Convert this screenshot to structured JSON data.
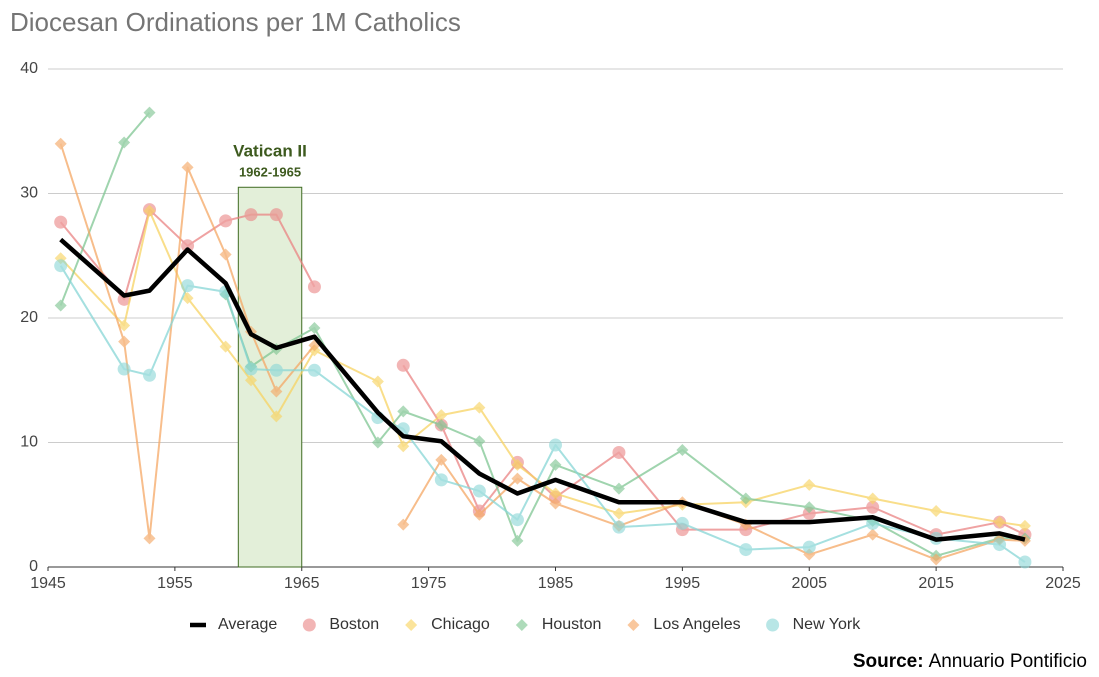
{
  "chart_data": {
    "type": "line",
    "title": "Diocesan Ordinations per 1M Catholics",
    "x": [
      1946,
      1951,
      1953,
      1956,
      1959,
      1961,
      1963,
      1966,
      1971,
      1973,
      1976,
      1979,
      1982,
      1985,
      1990,
      1995,
      2000,
      2005,
      2010,
      2015,
      2020,
      2022
    ],
    "series": [
      {
        "name": "Average",
        "color": "#000000",
        "marker": "none",
        "values": [
          26.3,
          21.8,
          22.2,
          25.5,
          22.8,
          18.7,
          17.6,
          18.5,
          12.4,
          10.5,
          10.1,
          7.5,
          5.9,
          7.0,
          5.2,
          5.2,
          3.6,
          3.6,
          4.0,
          2.2,
          2.7,
          2.2
        ]
      },
      {
        "name": "Boston",
        "color": "#ea8383",
        "marker": "circle",
        "values": [
          27.7,
          21.5,
          28.7,
          25.8,
          27.8,
          28.3,
          28.3,
          22.5,
          null,
          16.2,
          11.4,
          4.5,
          8.4,
          5.6,
          9.2,
          3.0,
          3.0,
          4.3,
          4.8,
          2.6,
          3.6,
          2.6
        ]
      },
      {
        "name": "Chicago",
        "color": "#f8d463",
        "marker": "diamond",
        "values": [
          24.8,
          19.4,
          28.6,
          21.6,
          17.7,
          15.0,
          12.1,
          17.4,
          14.9,
          9.7,
          12.2,
          12.8,
          8.2,
          5.9,
          4.3,
          5.0,
          5.2,
          6.6,
          5.5,
          4.5,
          3.6,
          3.3
        ]
      },
      {
        "name": "Houston",
        "color": "#80c693",
        "marker": "diamond",
        "values": [
          21.0,
          34.1,
          36.5,
          null,
          21.9,
          16.1,
          17.5,
          19.2,
          10.0,
          12.5,
          11.4,
          10.1,
          2.1,
          8.2,
          6.3,
          9.4,
          5.5,
          4.8,
          3.7,
          0.9,
          2.3,
          2.3
        ]
      },
      {
        "name": "Los Angeles",
        "color": "#f5a865",
        "marker": "diamond",
        "values": [
          34.0,
          18.1,
          2.3,
          32.1,
          25.1,
          18.9,
          14.1,
          17.8,
          null,
          3.4,
          8.6,
          4.2,
          7.1,
          5.1,
          3.3,
          5.2,
          3.4,
          1.0,
          2.6,
          0.6,
          2.2,
          2.1
        ]
      },
      {
        "name": "New York",
        "color": "#88d6d6",
        "marker": "circle",
        "values": [
          24.2,
          15.9,
          15.4,
          22.6,
          22.1,
          15.9,
          15.8,
          15.8,
          12.0,
          11.1,
          7.0,
          6.1,
          3.8,
          9.8,
          3.2,
          3.5,
          1.4,
          1.6,
          3.5,
          2.3,
          1.8,
          0.4
        ]
      }
    ],
    "xlim": [
      1945,
      2025
    ],
    "xticks": [
      1945,
      1955,
      1965,
      1975,
      1985,
      1995,
      2005,
      2015,
      2025
    ],
    "ylim": [
      0,
      40
    ],
    "yticks": [
      0,
      10,
      20,
      30,
      40
    ],
    "grid": true,
    "legend": "bottom",
    "highlight": {
      "from": 1960,
      "to": 1965,
      "label": "Vatican II",
      "sublabel": "1962-1965",
      "color": "#e3efd9"
    },
    "source": {
      "label": "Source:",
      "text": "Annuario Pontificio"
    }
  }
}
